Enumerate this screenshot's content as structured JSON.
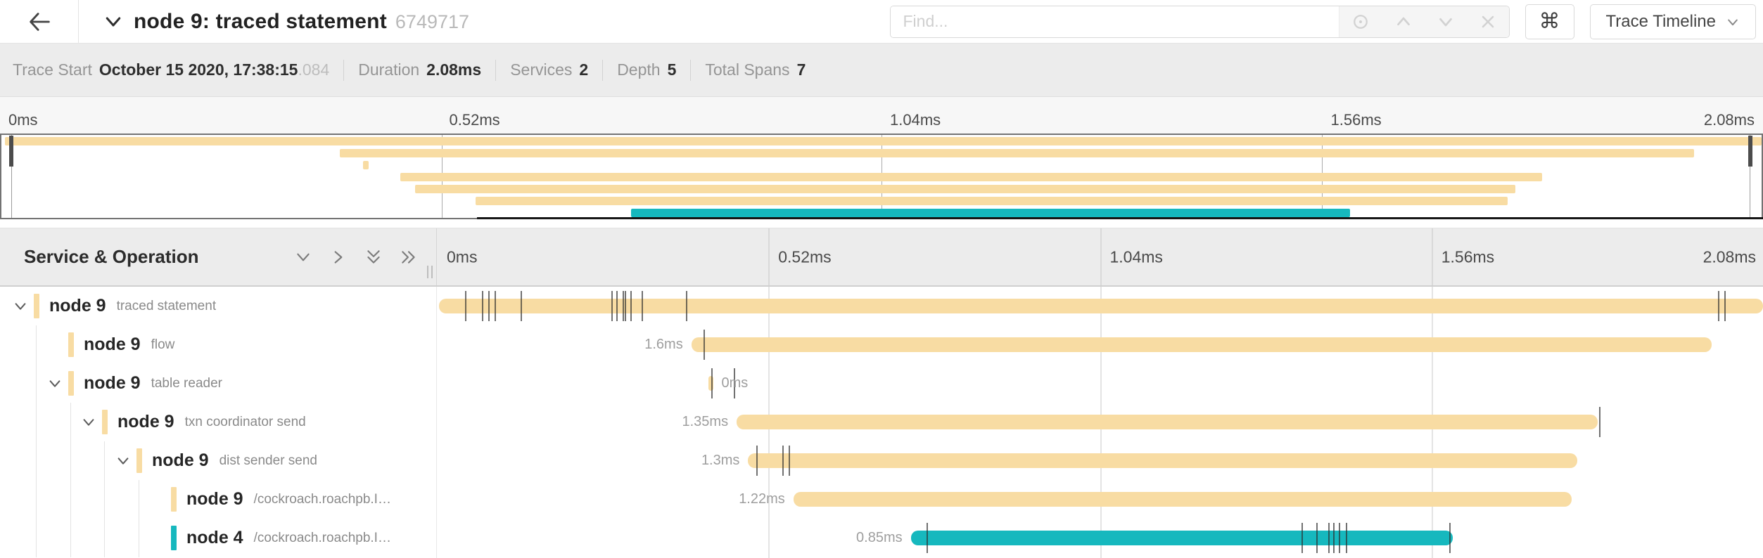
{
  "header": {
    "title": "node 9: traced statement",
    "trace_id_short": "6749717",
    "find_placeholder": "Find...",
    "shortcut_button_label": "⌘",
    "view_dropdown_label": "Trace Timeline",
    "icons": [
      "arrow-left",
      "chevron-down",
      "locate",
      "chevron-up",
      "chevron-down",
      "close",
      "command-key",
      "dropdown-caret"
    ]
  },
  "summary": {
    "items": [
      {
        "label": "Trace Start",
        "value": "October 15 2020, 17:38:15",
        "suffix": ".084"
      },
      {
        "label": "Duration",
        "value": "2.08ms",
        "suffix": ""
      },
      {
        "label": "Services",
        "value": "2",
        "suffix": ""
      },
      {
        "label": "Depth",
        "value": "5",
        "suffix": ""
      },
      {
        "label": "Total Spans",
        "value": "7",
        "suffix": ""
      }
    ]
  },
  "timeline": {
    "duration_ms": 2.08,
    "tick_labels": [
      "0ms",
      "0.52ms",
      "1.04ms",
      "1.56ms",
      "2.08ms"
    ],
    "left_header": "Service & Operation"
  },
  "colors": {
    "tan": "#F8DCA3",
    "teal": "#16B8BE",
    "tick": "rgba(45,45,45,0.68)"
  },
  "spans": [
    {
      "service": "node 9",
      "operation": "traced statement",
      "color_key": "tan",
      "depth": 0,
      "expander": true,
      "start_ms": 0.004,
      "duration_ms": 2.076,
      "duration_label": "",
      "label_side": "left",
      "ticks_ms": [
        0.045,
        0.072,
        0.082,
        0.092,
        0.132,
        0.275,
        0.282,
        0.292,
        0.296,
        0.304,
        0.322,
        0.392,
        2.009,
        2.019
      ]
    },
    {
      "service": "node 9",
      "operation": "flow",
      "color_key": "tan",
      "depth": 1,
      "expander": false,
      "start_ms": 0.4,
      "duration_ms": 1.6,
      "duration_label": "1.6ms",
      "label_side": "left",
      "ticks_ms": [
        0.419
      ]
    },
    {
      "service": "node 9",
      "operation": "table reader",
      "color_key": "tan",
      "depth": 1,
      "expander": true,
      "start_ms": 0.427,
      "duration_ms": 0.007,
      "duration_label": "0ms",
      "label_side": "right",
      "ticks_ms": [
        0.431,
        0.467
      ]
    },
    {
      "service": "node 9",
      "operation": "txn coordinator send",
      "color_key": "tan",
      "depth": 2,
      "expander": true,
      "start_ms": 0.471,
      "duration_ms": 1.35,
      "duration_label": "1.35ms",
      "label_side": "left",
      "ticks_ms": [
        1.823
      ]
    },
    {
      "service": "node 9",
      "operation": "dist sender send",
      "color_key": "tan",
      "depth": 3,
      "expander": true,
      "start_ms": 0.489,
      "duration_ms": 1.3,
      "duration_label": "1.3ms",
      "label_side": "left",
      "ticks_ms": [
        0.502,
        0.543,
        0.552
      ]
    },
    {
      "service": "node 9",
      "operation": "/cockroach.roachpb.I…",
      "color_key": "tan",
      "depth": 4,
      "expander": false,
      "start_ms": 0.56,
      "duration_ms": 1.22,
      "duration_label": "1.22ms",
      "label_side": "left",
      "ticks_ms": []
    },
    {
      "service": "node 4",
      "operation": "/cockroach.roachpb.I…",
      "color_key": "teal",
      "depth": 4,
      "expander": false,
      "start_ms": 0.744,
      "duration_ms": 0.85,
      "duration_label": "0.85ms",
      "label_side": "left",
      "ticks_ms": [
        0.769,
        1.356,
        1.38,
        1.398,
        1.406,
        1.415,
        1.426,
        1.588
      ]
    }
  ],
  "minimap": {
    "bottom_indicator_start_pct": 27
  }
}
